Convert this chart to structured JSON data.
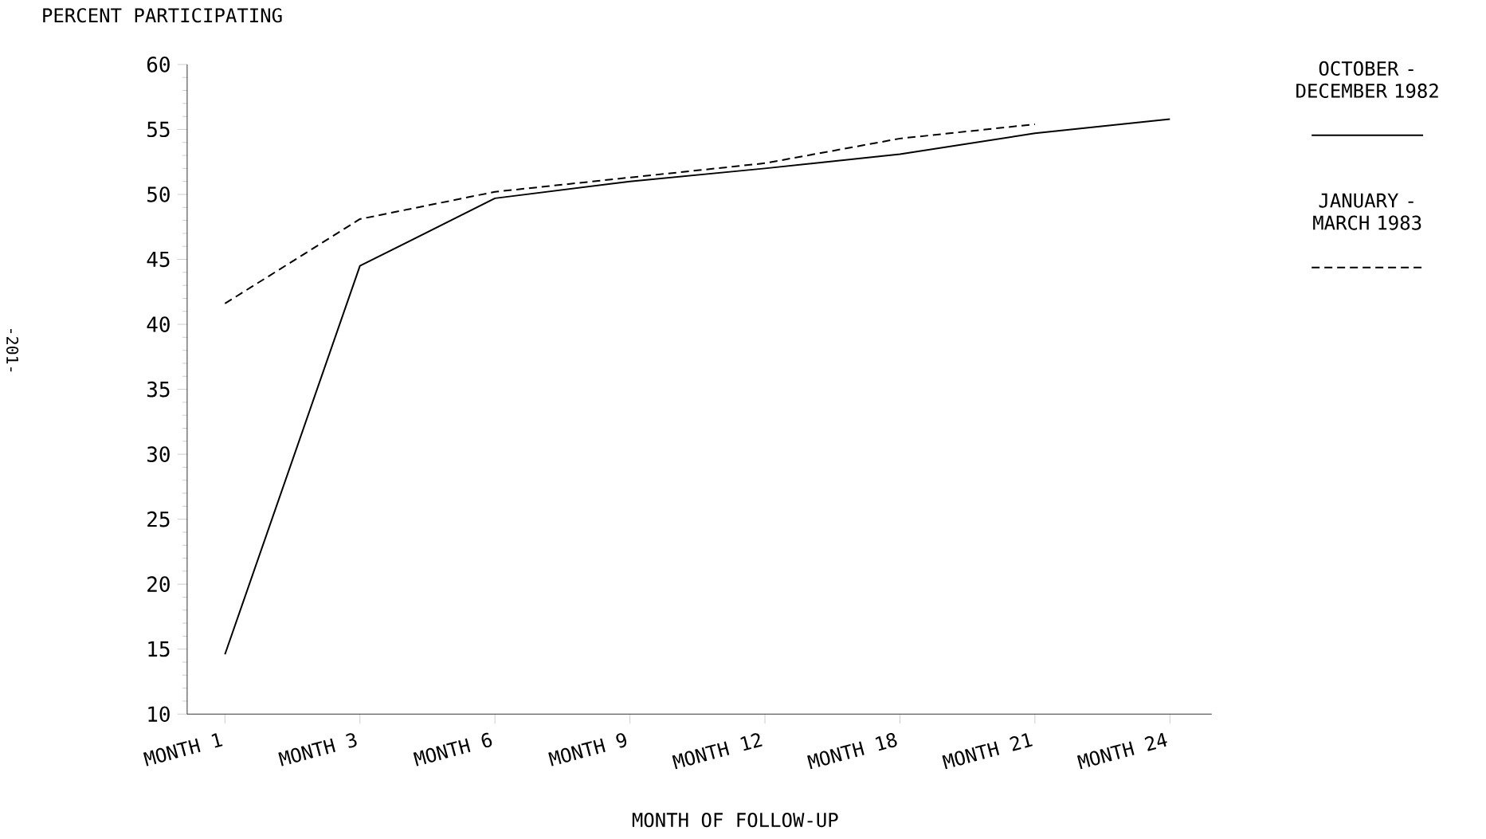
{
  "chart_data": {
    "type": "line",
    "ylabel": "PERCENT PARTICIPATING",
    "xlabel": "MONTH OF FOLLOW-UP",
    "categories": [
      "MONTH 1",
      "MONTH 3",
      "MONTH 6",
      "MONTH 9",
      "MONTH 12",
      "MONTH 18",
      "MONTH 21",
      "MONTH 24"
    ],
    "ylim": [
      10,
      60
    ],
    "yticks": [
      10,
      15,
      20,
      25,
      30,
      35,
      40,
      45,
      50,
      55,
      60
    ],
    "legend": "right",
    "annotations": [
      "-201-"
    ],
    "series": [
      {
        "name": "OCTOBER - DECEMBER 1982",
        "color": "#000000",
        "line_style": "solid",
        "values": [
          14.6,
          44.5,
          49.7,
          51.0,
          52.0,
          53.1,
          54.7,
          55.8
        ]
      },
      {
        "name": "JANUARY - MARCH 1983",
        "color": "#000000",
        "line_style": "dashed",
        "values": [
          41.6,
          48.1,
          50.2,
          51.3,
          52.4,
          54.3,
          55.4,
          null
        ]
      }
    ]
  }
}
